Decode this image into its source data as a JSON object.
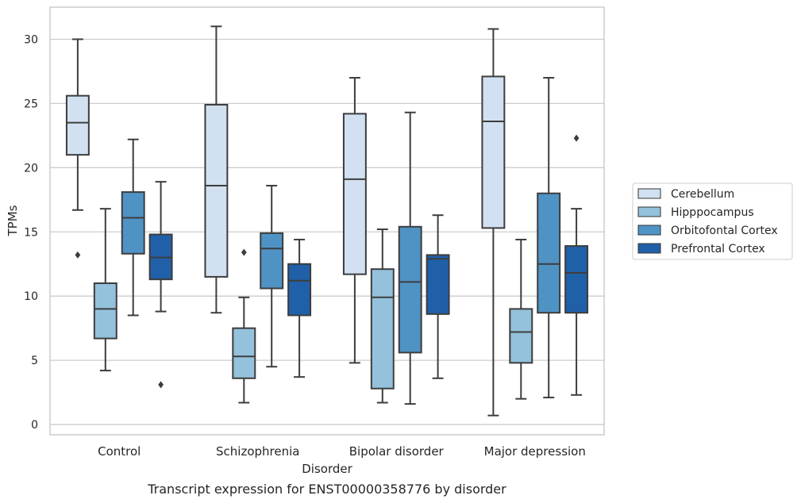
{
  "chart_data": {
    "type": "boxplot",
    "title": "",
    "caption": "Transcript expression for ENST00000358776 by disorder",
    "xlabel": "Disorder",
    "ylabel": "TPMs",
    "ylim": [
      -0.8,
      32.5
    ],
    "yticks": [
      0,
      5,
      10,
      15,
      20,
      25,
      30
    ],
    "grid": "horizontal",
    "legend_position": "right",
    "categories": [
      "Control",
      "Schizophrenia",
      "Bipolar disorder",
      "Major depression"
    ],
    "series": [
      {
        "name": "Cerebellum",
        "color": "#d1e1f1",
        "boxes": [
          {
            "whislo": 16.7,
            "q1": 21.0,
            "med": 23.5,
            "q3": 25.6,
            "whishi": 30.0,
            "fliers": [
              13.2
            ]
          },
          {
            "whislo": 8.7,
            "q1": 11.5,
            "med": 18.6,
            "q3": 24.9,
            "whishi": 31.0,
            "fliers": []
          },
          {
            "whislo": 4.8,
            "q1": 11.7,
            "med": 19.1,
            "q3": 24.2,
            "whishi": 27.0,
            "fliers": []
          },
          {
            "whislo": 0.7,
            "q1": 15.3,
            "med": 23.6,
            "q3": 27.1,
            "whishi": 30.8,
            "fliers": []
          }
        ]
      },
      {
        "name": "Hipppocampus",
        "color": "#94c1dc",
        "boxes": [
          {
            "whislo": 4.2,
            "q1": 6.7,
            "med": 9.0,
            "q3": 11.0,
            "whishi": 16.8,
            "fliers": []
          },
          {
            "whislo": 1.7,
            "q1": 3.6,
            "med": 5.3,
            "q3": 7.5,
            "whishi": 9.9,
            "fliers": [
              13.4
            ]
          },
          {
            "whislo": 1.7,
            "q1": 2.8,
            "med": 9.9,
            "q3": 12.1,
            "whishi": 15.2,
            "fliers": []
          },
          {
            "whislo": 2.0,
            "q1": 4.8,
            "med": 7.2,
            "q3": 9.0,
            "whishi": 14.4,
            "fliers": []
          }
        ]
      },
      {
        "name": "Orbitofontal Cortex",
        "color": "#4f93c4",
        "boxes": [
          {
            "whislo": 8.5,
            "q1": 13.3,
            "med": 16.1,
            "q3": 18.1,
            "whishi": 22.2,
            "fliers": []
          },
          {
            "whislo": 4.5,
            "q1": 10.6,
            "med": 13.7,
            "q3": 14.9,
            "whishi": 18.6,
            "fliers": []
          },
          {
            "whislo": 1.6,
            "q1": 5.6,
            "med": 11.1,
            "q3": 15.4,
            "whishi": 24.3,
            "fliers": []
          },
          {
            "whislo": 2.1,
            "q1": 8.7,
            "med": 12.5,
            "q3": 18.0,
            "whishi": 27.0,
            "fliers": []
          }
        ]
      },
      {
        "name": "Prefrontal Cortex",
        "color": "#2060a8",
        "boxes": [
          {
            "whislo": 8.8,
            "q1": 11.3,
            "med": 13.0,
            "q3": 14.8,
            "whishi": 18.9,
            "fliers": [
              3.1
            ]
          },
          {
            "whislo": 3.7,
            "q1": 8.5,
            "med": 11.2,
            "q3": 12.5,
            "whishi": 14.4,
            "fliers": []
          },
          {
            "whislo": 3.6,
            "q1": 8.6,
            "med": 12.9,
            "q3": 13.2,
            "whishi": 16.3,
            "fliers": []
          },
          {
            "whislo": 2.3,
            "q1": 8.7,
            "med": 11.8,
            "q3": 13.9,
            "whishi": 16.8,
            "fliers": [
              22.3
            ]
          }
        ]
      }
    ]
  },
  "style": {
    "line_color": "#3d3d3d",
    "grid_color": "#cccccc",
    "frame_color": "#cccccc",
    "text_color": "#262626"
  }
}
